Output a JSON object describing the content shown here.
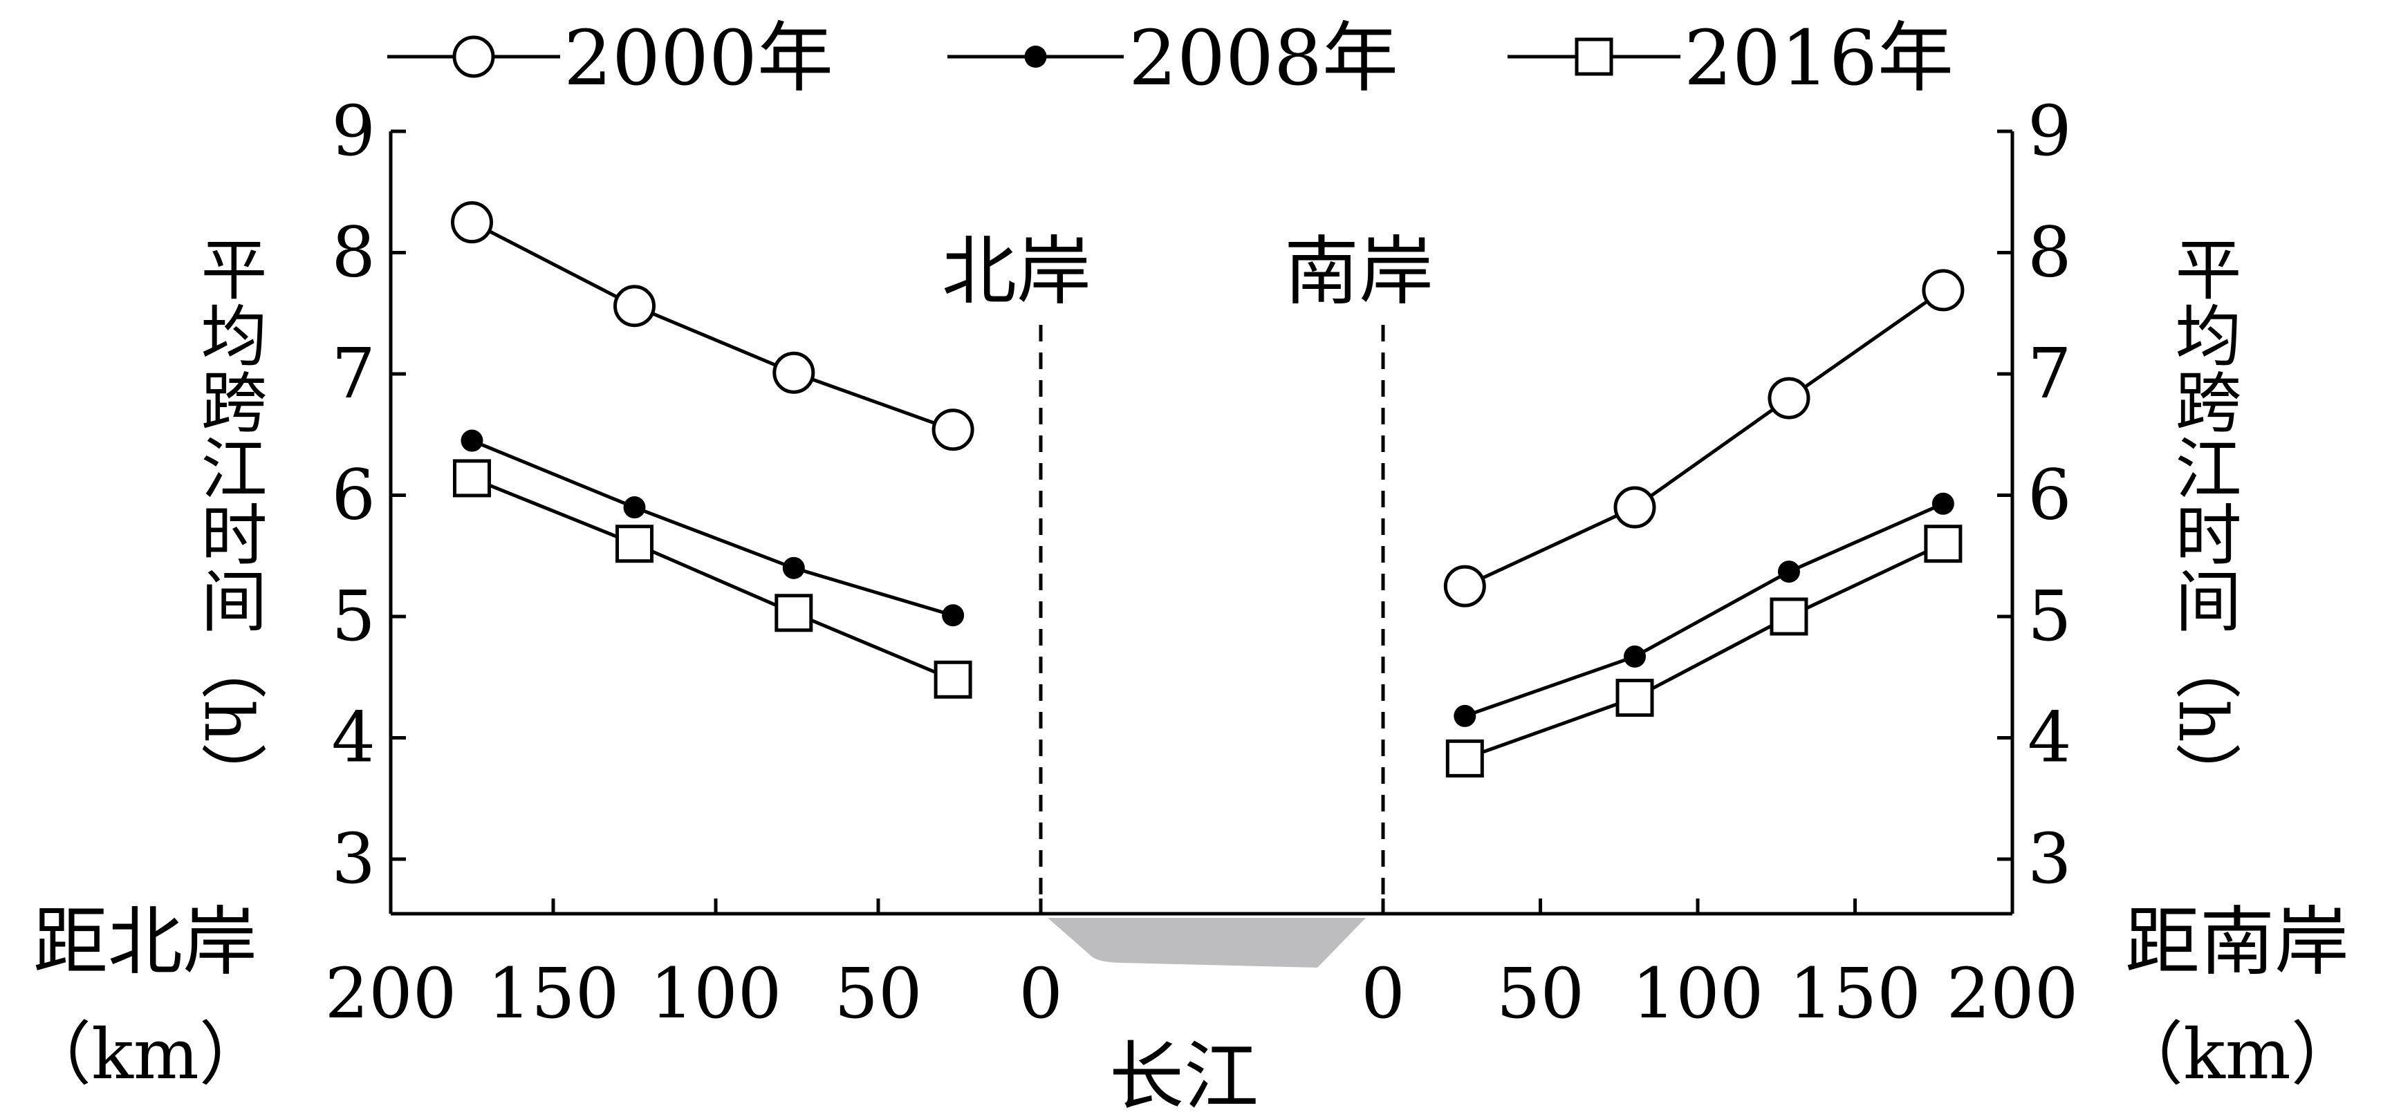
{
  "chart_data": {
    "type": "line",
    "legend": {
      "placement": "top",
      "entries": [
        "2000年",
        "2008年",
        "2016年"
      ]
    },
    "labels": {
      "north_bank": "北岸",
      "south_bank": "南岸",
      "river": "长江",
      "left_ylabel": "平均跨江时间（h）",
      "right_ylabel": "平均跨江时间（h）",
      "left_xlabel_line1": "距北岸",
      "left_xlabel_line2": "（km）",
      "right_xlabel_line1": "距南岸",
      "right_xlabel_line2": "（km）"
    },
    "y_axis": {
      "range": [
        2.55,
        9
      ],
      "ticks": [
        3,
        4,
        5,
        6,
        7,
        8,
        9
      ]
    },
    "north_axis": {
      "range": [
        200,
        0
      ],
      "ticks": [
        200,
        150,
        100,
        50,
        0
      ]
    },
    "south_axis": {
      "range": [
        0,
        200
      ],
      "ticks": [
        0,
        50,
        100,
        150,
        200
      ]
    },
    "series": [
      {
        "name": "2000年",
        "marker": "circle",
        "north": {
          "x": [
            175,
            125,
            76,
            27
          ],
          "y": [
            8.25,
            7.56,
            7.01,
            6.54
          ]
        },
        "south": {
          "x": [
            26,
            80,
            129,
            178
          ],
          "y": [
            5.25,
            5.9,
            6.8,
            7.69
          ]
        }
      },
      {
        "name": "2008年",
        "marker": "dot",
        "north": {
          "x": [
            175,
            125,
            76,
            27
          ],
          "y": [
            6.45,
            5.9,
            5.4,
            5.01
          ]
        },
        "south": {
          "x": [
            26,
            80,
            129,
            178
          ],
          "y": [
            4.18,
            4.67,
            5.37,
            5.93
          ]
        }
      },
      {
        "name": "2016年",
        "marker": "square",
        "north": {
          "x": [
            175,
            125,
            76,
            27
          ],
          "y": [
            6.14,
            5.6,
            5.03,
            4.48
          ]
        },
        "south": {
          "x": [
            26,
            80,
            129,
            178
          ],
          "y": [
            3.83,
            4.33,
            5.0,
            5.6
          ]
        }
      }
    ]
  }
}
